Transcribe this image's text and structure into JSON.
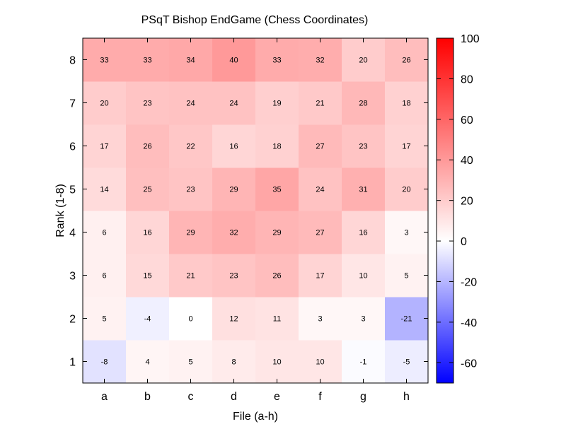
{
  "chart_data": {
    "type": "heatmap",
    "title": "PSqT Bishop EndGame (Chess Coordinates)",
    "xlabel": "File (a-h)",
    "ylabel": "Rank (1-8)",
    "x_categories": [
      "a",
      "b",
      "c",
      "d",
      "e",
      "f",
      "g",
      "h"
    ],
    "y_categories": [
      "1",
      "2",
      "3",
      "4",
      "5",
      "6",
      "7",
      "8"
    ],
    "values": [
      [
        -8,
        4,
        5,
        8,
        10,
        10,
        -1,
        -5
      ],
      [
        5,
        -4,
        0,
        12,
        11,
        3,
        3,
        -21
      ],
      [
        6,
        15,
        21,
        23,
        26,
        17,
        10,
        5
      ],
      [
        6,
        16,
        29,
        32,
        29,
        27,
        16,
        3
      ],
      [
        14,
        25,
        23,
        29,
        35,
        24,
        31,
        20
      ],
      [
        17,
        26,
        22,
        16,
        18,
        27,
        23,
        17
      ],
      [
        20,
        23,
        24,
        24,
        19,
        21,
        28,
        18
      ],
      [
        33,
        33,
        34,
        40,
        33,
        32,
        20,
        26
      ]
    ],
    "colorbar": {
      "range": [
        -70,
        100
      ],
      "center": 0,
      "ticks": [
        "100",
        "80",
        "60",
        "40",
        "20",
        "0",
        "-20",
        "-40",
        "-60"
      ],
      "colors": {
        "low": "#0000ff",
        "mid": "#ffffff",
        "high": "#ff0000"
      }
    }
  }
}
